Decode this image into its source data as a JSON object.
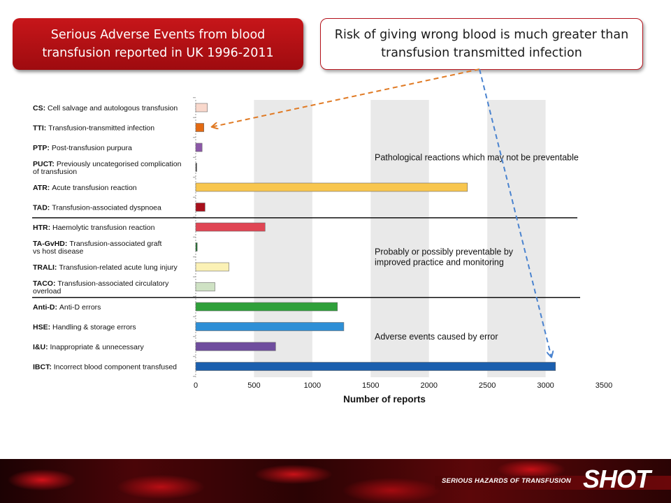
{
  "slide": {
    "title": "Serious Adverse Events from blood transfusion reported in UK 1996-2011",
    "note": "Risk of giving wrong blood is much greater than transfusion transmitted infection"
  },
  "chart_data": {
    "type": "bar",
    "orientation": "horizontal",
    "xlabel": "Number of reports",
    "ylabel": "",
    "xlim": [
      0,
      3500
    ],
    "xticks": [
      0,
      500,
      1000,
      1500,
      2000,
      2500,
      3000,
      3500
    ],
    "grid": "alternating shaded vertical bands",
    "categories": [
      {
        "code": "CS:",
        "text": [
          "Cell salvage and autologous transfusion"
        ],
        "value": 100,
        "color": "#f9d8cc"
      },
      {
        "code": "TTI:",
        "text": [
          "Transfusion-transmitted infection"
        ],
        "value": 70,
        "color": "#e36a12"
      },
      {
        "code": "PTP:",
        "text": [
          "Post-transfusion purpura"
        ],
        "value": 55,
        "color": "#8c58a8"
      },
      {
        "code": "PUCT:",
        "text": [
          "Previously uncategorised complication",
          "of transfusion"
        ],
        "value": 5,
        "color": "#3a3a3a"
      },
      {
        "code": "ATR:",
        "text": [
          "Acute transfusion reaction"
        ],
        "value": 2330,
        "color": "#f8c64e"
      },
      {
        "code": "TAD:",
        "text": [
          "Transfusion-associated dyspnoea"
        ],
        "value": 80,
        "color": "#a8101c"
      },
      {
        "code": "HTR:",
        "text": [
          "Haemolytic transfusion reaction"
        ],
        "value": 595,
        "color": "#e04654"
      },
      {
        "code": "TA-GvHD:",
        "text": [
          "Transfusion-associated graft",
          "vs host disease"
        ],
        "value": 13,
        "color": "#1e6e2c"
      },
      {
        "code": "TRALI:",
        "text": [
          "Transfusion-related acute lung injury"
        ],
        "value": 285,
        "color": "#fbf1b5"
      },
      {
        "code": "TACO:",
        "text": [
          "Transfusion-associated circulatory",
          "overload"
        ],
        "value": 165,
        "color": "#cfe2c4"
      },
      {
        "code": "Anti-D:",
        "text": [
          "Anti-D errors"
        ],
        "value": 1215,
        "color": "#2fa03a"
      },
      {
        "code": "HSE:",
        "text": [
          "Handling & storage errors"
        ],
        "value": 1270,
        "color": "#2e8fd6"
      },
      {
        "code": "I&U:",
        "text": [
          "Inappropriate & unnecessary"
        ],
        "value": 685,
        "color": "#6f4d9e"
      },
      {
        "code": "IBCT:",
        "text": [
          "Incorrect blood component transfused"
        ],
        "value": 3085,
        "color": "#1b5fae"
      }
    ],
    "groups": [
      {
        "label": [
          "Pathological reactions which may not be preventable"
        ],
        "first": 0,
        "last": 5
      },
      {
        "label": [
          "Probably or possibly preventable by",
          "improved practice and monitoring"
        ],
        "first": 6,
        "last": 9
      },
      {
        "label": [
          "Adverse events caused by error"
        ],
        "first": 10,
        "last": 13
      }
    ]
  },
  "footer": {
    "tagline": "SERIOUS HAZARDS OF TRANSFUSION",
    "logo": "SHOT"
  }
}
